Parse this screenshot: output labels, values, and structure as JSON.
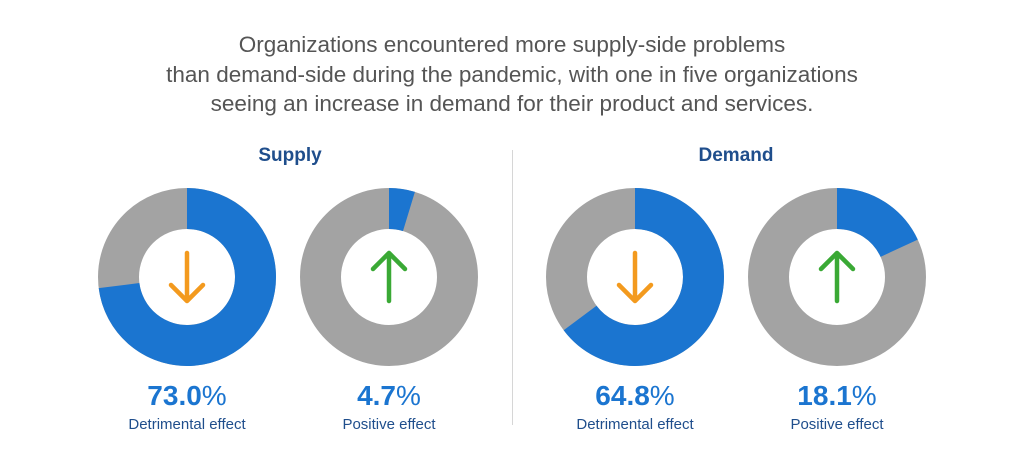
{
  "headline": [
    "Organizations encountered more supply-side problems",
    "than demand-side during the pandemic, with one in five organizations",
    "seeing an increase in demand for their product and services."
  ],
  "colors": {
    "filled": "#1b75d0",
    "remainder": "#a3a3a3",
    "down_arrow": "#f39a1e",
    "up_arrow": "#3aa935",
    "title": "#1f4e8c"
  },
  "chart_data": {
    "type": "pie",
    "variant": "donut",
    "groups": [
      {
        "title": "Supply",
        "charts": [
          {
            "value": 73.0,
            "value_text": "73.0",
            "label": "Detrimental effect",
            "icon": "arrow-down-icon"
          },
          {
            "value": 4.7,
            "value_text": "4.7",
            "label": "Positive effect",
            "icon": "arrow-up-icon"
          }
        ]
      },
      {
        "title": "Demand",
        "charts": [
          {
            "value": 64.8,
            "value_text": "64.8",
            "label": "Detrimental effect",
            "icon": "arrow-down-icon"
          },
          {
            "value": 18.1,
            "value_text": "18.1",
            "label": "Positive effect",
            "icon": "arrow-up-icon"
          }
        ]
      }
    ],
    "unit": "%"
  }
}
